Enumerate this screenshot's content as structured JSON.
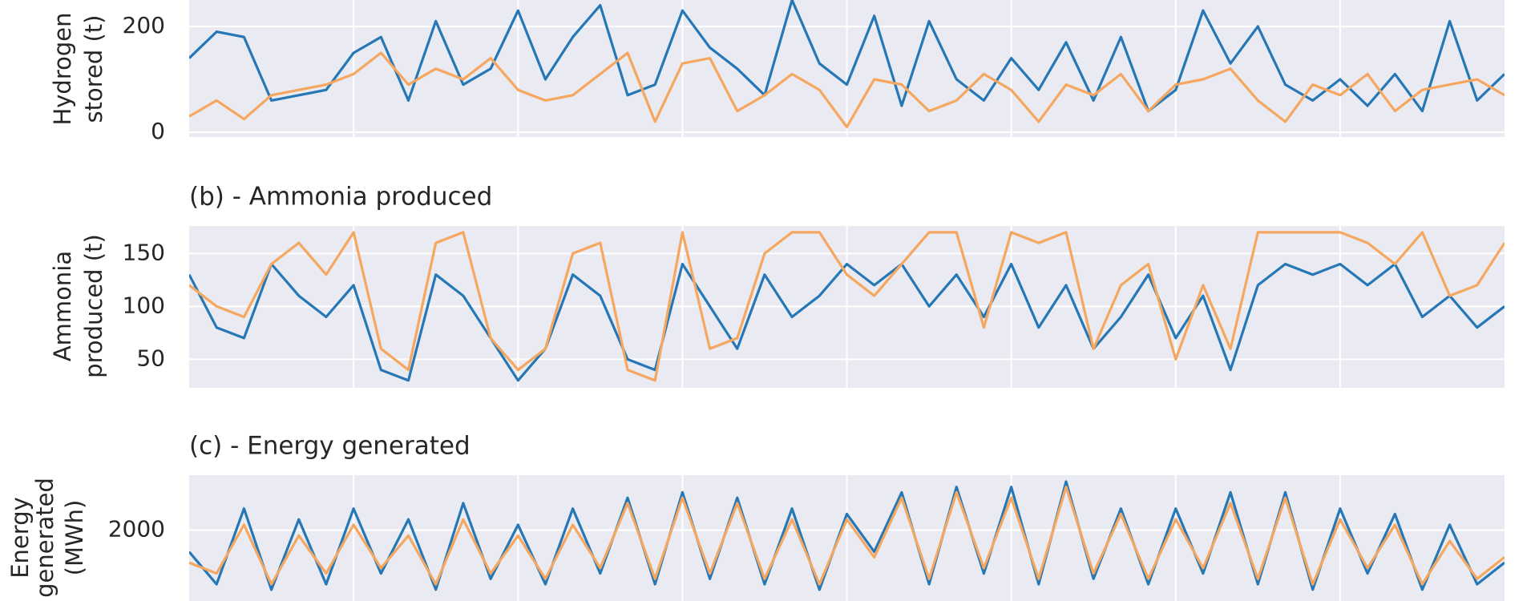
{
  "chart_data": [
    {
      "type": "line",
      "ylabel": [
        "Hydrogen",
        "stored (t)"
      ],
      "x": [
        0,
        1,
        2,
        3,
        4,
        5,
        6,
        7,
        8,
        9,
        10,
        11,
        12,
        13,
        14,
        15,
        16,
        17,
        18,
        19,
        20,
        21,
        22,
        23,
        24,
        25,
        26,
        27,
        28,
        29,
        30,
        31,
        32,
        33,
        34,
        35,
        36,
        37,
        38,
        39,
        40,
        41,
        42,
        43,
        44,
        45,
        46,
        47,
        48
      ],
      "xlim": [
        0,
        48
      ],
      "xticks": [
        6,
        12,
        18,
        24,
        30,
        36,
        42
      ],
      "ylim": [
        -9,
        250
      ],
      "yticks": [
        0,
        200
      ],
      "grid": true,
      "series": [
        {
          "color": "#2677b6",
          "values": [
            140,
            190,
            180,
            60,
            70,
            80,
            150,
            180,
            60,
            210,
            90,
            120,
            230,
            100,
            180,
            240,
            70,
            90,
            230,
            160,
            120,
            70,
            250,
            130,
            90,
            220,
            50,
            210,
            100,
            60,
            140,
            80,
            170,
            60,
            180,
            40,
            80,
            230,
            130,
            200,
            90,
            60,
            100,
            50,
            110,
            40,
            210,
            60,
            110
          ]
        },
        {
          "color": "#f6a75f",
          "values": [
            30,
            60,
            25,
            70,
            80,
            90,
            110,
            150,
            90,
            120,
            100,
            140,
            80,
            60,
            70,
            110,
            150,
            20,
            130,
            140,
            40,
            70,
            110,
            80,
            10,
            100,
            90,
            40,
            60,
            110,
            80,
            20,
            90,
            70,
            110,
            40,
            90,
            100,
            120,
            60,
            20,
            90,
            70,
            110,
            40,
            80,
            90,
            100,
            70
          ]
        }
      ]
    },
    {
      "type": "line",
      "title": "(b) - Ammonia produced",
      "ylabel": [
        "Ammonia",
        "produced (t)"
      ],
      "x": [
        0,
        1,
        2,
        3,
        4,
        5,
        6,
        7,
        8,
        9,
        10,
        11,
        12,
        13,
        14,
        15,
        16,
        17,
        18,
        19,
        20,
        21,
        22,
        23,
        24,
        25,
        26,
        27,
        28,
        29,
        30,
        31,
        32,
        33,
        34,
        35,
        36,
        37,
        38,
        39,
        40,
        41,
        42,
        43,
        44,
        45,
        46,
        47,
        48
      ],
      "xlim": [
        0,
        48
      ],
      "xticks": [
        6,
        12,
        18,
        24,
        30,
        36,
        42
      ],
      "ylim": [
        23,
        176
      ],
      "yticks": [
        50,
        100,
        150
      ],
      "grid": true,
      "series": [
        {
          "color": "#2677b6",
          "values": [
            130,
            80,
            70,
            140,
            110,
            90,
            120,
            40,
            30,
            130,
            110,
            70,
            30,
            60,
            130,
            110,
            50,
            40,
            140,
            100,
            60,
            130,
            90,
            110,
            140,
            120,
            140,
            100,
            130,
            90,
            140,
            80,
            120,
            60,
            90,
            130,
            70,
            110,
            40,
            120,
            140,
            130,
            140,
            120,
            140,
            90,
            110,
            80,
            100
          ]
        },
        {
          "color": "#f6a75f",
          "values": [
            120,
            100,
            90,
            140,
            160,
            130,
            170,
            60,
            40,
            160,
            170,
            70,
            40,
            60,
            150,
            160,
            40,
            30,
            170,
            60,
            70,
            150,
            170,
            170,
            130,
            110,
            140,
            170,
            170,
            80,
            170,
            160,
            170,
            60,
            120,
            140,
            50,
            120,
            60,
            170,
            170,
            170,
            170,
            160,
            140,
            170,
            110,
            120,
            160
          ]
        }
      ]
    },
    {
      "type": "line",
      "title": "(c) - Energy generated",
      "ylabel": [
        "Energy",
        "generated",
        "(MWh)"
      ],
      "x": [
        0,
        1,
        2,
        3,
        4,
        5,
        6,
        7,
        8,
        9,
        10,
        11,
        12,
        13,
        14,
        15,
        16,
        17,
        18,
        19,
        20,
        21,
        22,
        23,
        24,
        25,
        26,
        27,
        28,
        29,
        30,
        31,
        32,
        33,
        34,
        35,
        36,
        37,
        38,
        39,
        40,
        41,
        42,
        43,
        44,
        45,
        46,
        47,
        48
      ],
      "xlim": [
        0,
        48
      ],
      "xticks": [
        6,
        12,
        18,
        24,
        30,
        36,
        42
      ],
      "ylim": [
        1345,
        2509
      ],
      "yticks": [
        2000
      ],
      "grid": true,
      "series": [
        {
          "color": "#2677b6",
          "values": [
            1800,
            1500,
            2200,
            1450,
            2100,
            1500,
            2200,
            1600,
            2100,
            1450,
            2250,
            1550,
            2050,
            1500,
            2200,
            1600,
            2300,
            1500,
            2350,
            1550,
            2300,
            1500,
            2200,
            1450,
            2150,
            1800,
            2350,
            1500,
            2400,
            1600,
            2400,
            1500,
            2450,
            1550,
            2200,
            1500,
            2200,
            1600,
            2350,
            1500,
            2350,
            1450,
            2200,
            1600,
            2150,
            1450,
            2050,
            1500,
            1700
          ]
        },
        {
          "color": "#f6a75f",
          "values": [
            1700,
            1600,
            2050,
            1500,
            1950,
            1600,
            2050,
            1650,
            1950,
            1500,
            2100,
            1600,
            1950,
            1550,
            2050,
            1650,
            2250,
            1550,
            2300,
            1600,
            2250,
            1550,
            2100,
            1500,
            2100,
            1750,
            2300,
            1550,
            2350,
            1650,
            2300,
            1550,
            2400,
            1600,
            2150,
            1550,
            2100,
            1650,
            2250,
            1550,
            2300,
            1500,
            2100,
            1650,
            2050,
            1500,
            1900,
            1550,
            1750
          ]
        }
      ]
    }
  ]
}
